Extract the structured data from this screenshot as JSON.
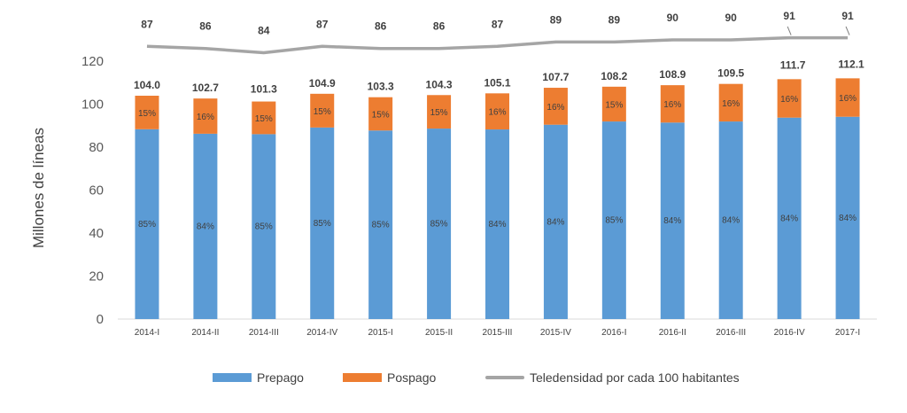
{
  "chart_data": {
    "type": "bar",
    "stacked": true,
    "ylabel": "Millones de líneas",
    "ylim": [
      0,
      130
    ],
    "yticks": [
      0,
      20,
      40,
      60,
      80,
      100,
      120
    ],
    "grid": false,
    "legend_position": "bottom",
    "categories": [
      "2014-I",
      "2014-II",
      "2014-III",
      "2014-IV",
      "2015-I",
      "2015-II",
      "2015-III",
      "2015-IV",
      "2016-I",
      "2016-II",
      "2016-III",
      "2016-IV",
      "2017-I"
    ],
    "totals": [
      104.0,
      102.7,
      101.3,
      104.9,
      103.3,
      104.3,
      105.1,
      107.7,
      108.2,
      108.9,
      109.5,
      111.7,
      112.1
    ],
    "total_labels": [
      "104.0",
      "102.7",
      "101.3",
      "104.9",
      "103.3",
      "104.3",
      "105.1",
      "107.7",
      "108.2",
      "108.9",
      "109.5",
      "111.7",
      "112.1"
    ],
    "series": [
      {
        "name": "Prepago",
        "color": "#5B9BD5",
        "share_labels": [
          "85%",
          "84%",
          "85%",
          "85%",
          "85%",
          "85%",
          "84%",
          "84%",
          "85%",
          "84%",
          "84%",
          "84%",
          "84%"
        ],
        "values": [
          88.4,
          86.3,
          86.1,
          89.2,
          87.8,
          88.7,
          88.3,
          90.5,
          92.0,
          91.5,
          92.0,
          93.8,
          94.2
        ]
      },
      {
        "name": "Pospago",
        "color": "#ED7D31",
        "share_labels": [
          "15%",
          "16%",
          "15%",
          "15%",
          "15%",
          "15%",
          "16%",
          "16%",
          "15%",
          "16%",
          "16%",
          "16%",
          "16%"
        ],
        "values": [
          15.6,
          16.4,
          15.2,
          15.7,
          15.5,
          15.6,
          16.8,
          17.2,
          16.2,
          17.4,
          17.5,
          17.9,
          17.9
        ]
      },
      {
        "name": "Teledensidad por cada 100 habitantes",
        "type": "line",
        "color": "#A5A5A5",
        "values": [
          87,
          86,
          84,
          87,
          86,
          86,
          87,
          89,
          89,
          90,
          90,
          91,
          91
        ],
        "labels": [
          "87",
          "86",
          "84",
          "87",
          "86",
          "86",
          "87",
          "89",
          "89",
          "90",
          "90",
          "91",
          "91"
        ]
      }
    ]
  },
  "legend": {
    "prepago": "Prepago",
    "pospago": "Pospago",
    "teledensidad": "Teledensidad por cada 100 habitantes"
  },
  "axis": {
    "ylabel": "Millones de líneas"
  }
}
